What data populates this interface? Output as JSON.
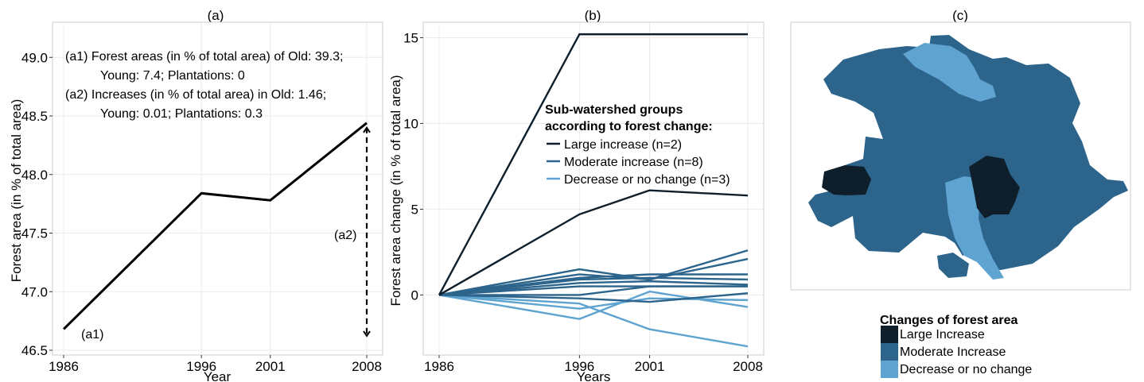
{
  "colors": {
    "large": "#0e1f2b",
    "moderate": "#2c648c",
    "decrease": "#5fa4d0",
    "panel_border": "#cccccc",
    "grid": "#ebebeb",
    "line_a": "#000000"
  },
  "chart_data": [
    {
      "panel": "(a)",
      "type": "line",
      "xlabel": "Year",
      "ylabel": "Forest area (in % of total area)",
      "xlim": [
        1986,
        2008
      ],
      "ylim": [
        46.5,
        49.3
      ],
      "x_ticks": [
        1986,
        1996,
        2001,
        2008
      ],
      "y_ticks": [
        46.5,
        47.0,
        47.5,
        48.0,
        48.5,
        49.0
      ],
      "y_tick_labels": [
        "46.5",
        "47.0",
        "47.5",
        "48.0",
        "48.5",
        "49.0"
      ],
      "series": [
        {
          "x": [
            1986,
            1996,
            2001,
            2008
          ],
          "values": [
            46.68,
            47.84,
            47.78,
            48.44
          ]
        }
      ],
      "annotations": {
        "a1_line1": "(a1)  Forest areas (in % of total area) of Old: 39.3;",
        "a1_line2": "Young: 7.4;  Plantations: 0",
        "a2_line1": "(a2)  Increases (in % of total area) in Old: 1.46;",
        "a2_line2": "Young: 0.01; Plantations: 0.3",
        "arrow_label": "(a2)",
        "point_label": "(a1)"
      }
    },
    {
      "panel": "(b)",
      "type": "line",
      "xlabel": "Years",
      "ylabel": "Forest area change (in % of total area)",
      "xlim": [
        1986,
        2008
      ],
      "ylim": [
        -3.5,
        15.9
      ],
      "x_ticks": [
        1986,
        1996,
        2001,
        2008
      ],
      "y_ticks": [
        0,
        5,
        10,
        15
      ],
      "legend": {
        "title_line1": "Sub-watershed groups",
        "title_line2": "according to forest change:",
        "entries": [
          {
            "label": "Large increase (n=2)",
            "group": "large"
          },
          {
            "label": "Moderate increase (n=8)",
            "group": "moderate"
          },
          {
            "label": "Decrease or no change (n=3)",
            "group": "decrease"
          }
        ]
      },
      "x": [
        1986,
        1996,
        2001,
        2008
      ],
      "series": [
        {
          "group": "large",
          "values": [
            0,
            15.2,
            15.2,
            15.2
          ]
        },
        {
          "group": "large",
          "values": [
            0,
            4.7,
            6.1,
            5.8
          ]
        },
        {
          "group": "moderate",
          "values": [
            0,
            1.5,
            0.9,
            2.6
          ]
        },
        {
          "group": "moderate",
          "values": [
            0,
            1.2,
            0.9,
            2.1
          ]
        },
        {
          "group": "moderate",
          "values": [
            0,
            1.0,
            1.2,
            1.2
          ]
        },
        {
          "group": "moderate",
          "values": [
            0,
            0.9,
            1.0,
            0.9
          ]
        },
        {
          "group": "moderate",
          "values": [
            0,
            0.7,
            0.8,
            0.6
          ]
        },
        {
          "group": "moderate",
          "values": [
            0,
            0.5,
            0.5,
            0.5
          ]
        },
        {
          "group": "moderate",
          "values": [
            0,
            0.0,
            0.5,
            0.5
          ]
        },
        {
          "group": "moderate",
          "values": [
            0,
            -0.2,
            -0.4,
            0.1
          ]
        },
        {
          "group": "decrease",
          "values": [
            0,
            -0.8,
            -0.2,
            -0.3
          ]
        },
        {
          "group": "decrease",
          "values": [
            0,
            -1.4,
            0.2,
            -0.7
          ]
        },
        {
          "group": "decrease",
          "values": [
            0,
            -0.5,
            -2.0,
            -3.0
          ]
        }
      ]
    }
  ],
  "panel_c": {
    "title": "(c)",
    "legend": {
      "title": "Changes of forest area",
      "entries": [
        {
          "label": "Large Increase",
          "group": "large"
        },
        {
          "label": "Moderate Increase",
          "group": "moderate"
        },
        {
          "label": "Decrease or no change",
          "group": "decrease"
        }
      ]
    }
  }
}
